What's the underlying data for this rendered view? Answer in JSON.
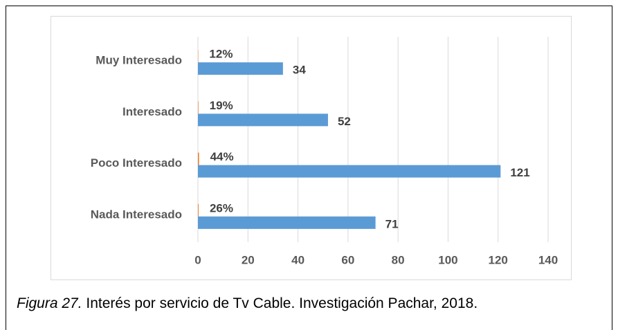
{
  "chart_data": {
    "type": "hbar",
    "categories": [
      "Muy Interesado",
      "Interesado",
      "Poco Interesado",
      "Nada Interesado"
    ],
    "series": [
      {
        "color": "#5b9bd5",
        "values": [
          34,
          52,
          121,
          71
        ]
      },
      {
        "color": "#ed7d31",
        "values": [
          0.12,
          0.19,
          0.44,
          0.26
        ],
        "value_labels": [
          "12%",
          "19%",
          "44%",
          "26%"
        ]
      }
    ],
    "xlim": [
      0,
      140
    ],
    "xticks": [
      0,
      20,
      40,
      60,
      80,
      100,
      120,
      140
    ],
    "grid": true
  },
  "caption": {
    "label": "Figura 27.",
    "text": " Interés por servicio de Tv Cable. Investigación Pachar, 2018."
  }
}
